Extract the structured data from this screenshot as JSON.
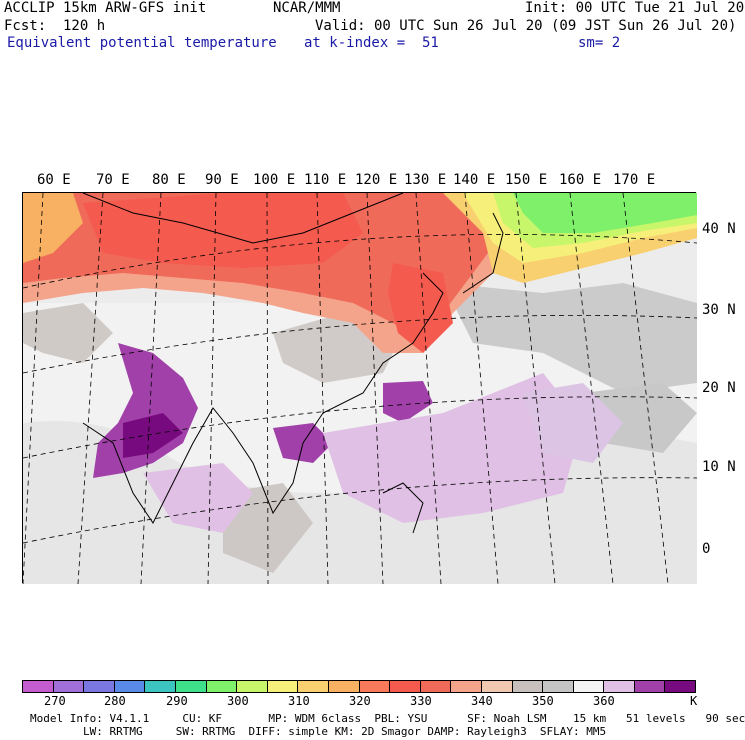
{
  "header": {
    "model_title": "ACCLIP 15km ARW-GFS init",
    "org": "NCAR/MMM",
    "init": "Init: 00 UTC Tue 21 Jul 20",
    "fcst": "Fcst:  120 h",
    "valid": "Valid: 00 UTC Sun 26 Jul 20 (09 JST Sun 26 Jul 20)",
    "field": "Equivalent potential temperature",
    "level": "at k-index =  51",
    "smooth": "sm= 2"
  },
  "map": {
    "lon_labels": [
      "60 E",
      "70 E",
      "80 E",
      "90 E",
      "100 E",
      "110 E",
      "120 E",
      "130 E",
      "140 E",
      "150 E",
      "160 E",
      "170 E"
    ],
    "lat_labels": [
      "40 N",
      "30 N",
      "20 N",
      "10 N",
      "0"
    ]
  },
  "colorbar": {
    "colors": [
      "#c45cd0",
      "#a070d8",
      "#7a78e0",
      "#5a8ae8",
      "#3cc4c0",
      "#3ee08a",
      "#7ef06a",
      "#c8f66a",
      "#f6f07a",
      "#f8d070",
      "#f8b062",
      "#f87a5a",
      "#f45a4e",
      "#f06a5a",
      "#f4a48a",
      "#f0c8b0",
      "#c8c0bc",
      "#c4c4c4",
      "#f4f4f4",
      "#e0c0e4",
      "#a040a8",
      "#780a80"
    ],
    "labels": [
      "270",
      "280",
      "290",
      "300",
      "310",
      "320",
      "330",
      "340",
      "350",
      "360",
      "K"
    ]
  },
  "footer": {
    "line1": "Model Info: V4.1.1     CU: KF       MP: WDM 6class  PBL: YSU      SF: Noah LSM    15 km   51 levels   90 sec",
    "line2": "        LW: RRTMG     SW: RRTMG  DIFF: simple KM: 2D Smagor DAMP: Rayleigh3  SFLAY: MM5"
  }
}
